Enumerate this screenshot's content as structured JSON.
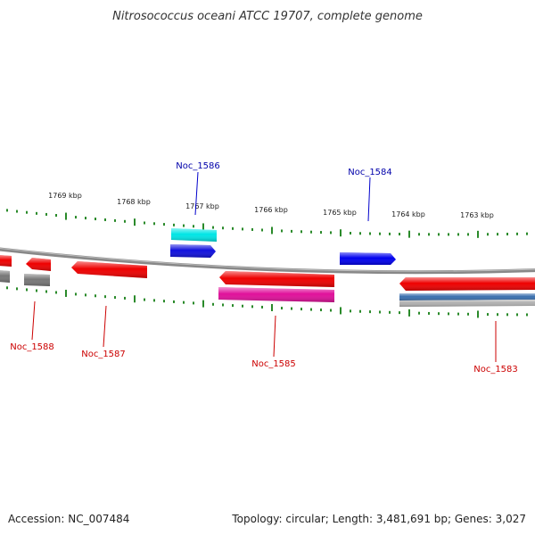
{
  "title": "Nitrosococcus oceani ATCC 19707, complete genome",
  "footer": {
    "accession": "Accession: NC_007484",
    "summary": "Topology: circular; Length: 3,481,691 bp; Genes: 3,027"
  },
  "colors": {
    "backbone": "#888888",
    "tick": "#2a8a2a",
    "label_top": "#0000aa",
    "label_bottom": "#cc0000",
    "leader_top": "#0000cc",
    "leader_bottom": "#cc0000"
  },
  "scale": {
    "unit": "kbp",
    "kbp_labels": [
      "1769 kbp",
      "1768 kbp",
      "1767 kbp",
      "1766 kbp",
      "1765 kbp",
      "1764 kbp",
      "1763 kbp"
    ]
  },
  "genes": [
    {
      "id": "f1",
      "strand": "forward",
      "color": "#00e5e5",
      "shape": "box"
    },
    {
      "id": "f2",
      "strand": "forward",
      "color": "#1010dd",
      "shape": "arrow-right"
    },
    {
      "id": "f3",
      "strand": "forward",
      "color": "#0000ee",
      "shape": "arrow-right"
    },
    {
      "id": "r1",
      "strand": "reverse",
      "color": "#ee0000",
      "shape": "arrow-left"
    },
    {
      "id": "r2",
      "strand": "reverse",
      "color": "#777777",
      "shape": "box"
    },
    {
      "id": "r3",
      "strand": "reverse",
      "color": "#ee0000",
      "shape": "arrow-left"
    },
    {
      "id": "r4",
      "strand": "reverse",
      "color": "#ee0000",
      "shape": "arrow-left"
    },
    {
      "id": "r5",
      "strand": "reverse",
      "color": "#ee0000",
      "shape": "arrow-left"
    },
    {
      "id": "r6",
      "strand": "reverse",
      "color": "#e0109a",
      "shape": "box"
    },
    {
      "id": "r7",
      "strand": "reverse",
      "color": "#ee0000",
      "shape": "arrow-left"
    },
    {
      "id": "r8",
      "strand": "reverse",
      "color": "#3a6fae",
      "shape": "box"
    },
    {
      "id": "r9",
      "strand": "reverse",
      "color": "#b0b0b0",
      "shape": "box"
    }
  ],
  "labels": [
    {
      "text": "Noc_1586",
      "side": "top"
    },
    {
      "text": "Noc_1584",
      "side": "top"
    },
    {
      "text": "Noc_1588",
      "side": "bottom"
    },
    {
      "text": "Noc_1587",
      "side": "bottom"
    },
    {
      "text": "Noc_1585",
      "side": "bottom"
    },
    {
      "text": "Noc_1583",
      "side": "bottom"
    }
  ]
}
